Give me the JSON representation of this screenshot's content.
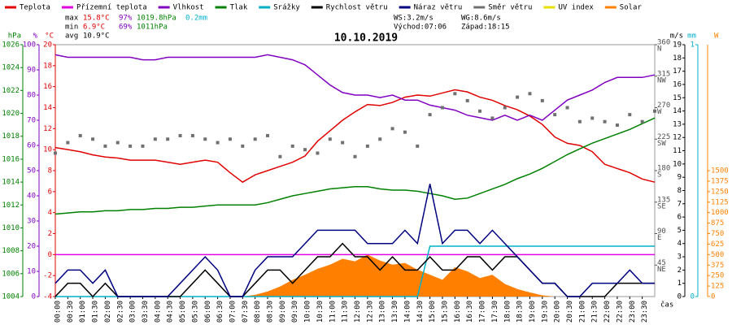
{
  "chart_data": {
    "type": "line",
    "title": "10.10.2019",
    "xlabel": "čas",
    "xlim": [
      0,
      24
    ],
    "xticks": [
      {
        "value": 0,
        "label": "00:00"
      },
      {
        "value": 0.5,
        "label": "00:30"
      },
      {
        "value": 1,
        "label": "01:00"
      },
      {
        "value": 1.5,
        "label": "01:30"
      },
      {
        "value": 2,
        "label": "02:00"
      },
      {
        "value": 2.5,
        "label": "02:30"
      },
      {
        "value": 3,
        "label": "03:00"
      },
      {
        "value": 3.5,
        "label": "03:30"
      },
      {
        "value": 4,
        "label": "04:00"
      },
      {
        "value": 4.5,
        "label": "04:30"
      },
      {
        "value": 5,
        "label": "05:00"
      },
      {
        "value": 5.5,
        "label": "05:30"
      },
      {
        "value": 6,
        "label": "06:00"
      },
      {
        "value": 6.5,
        "label": "06:30"
      },
      {
        "value": 7,
        "label": "07:00"
      },
      {
        "value": 7.5,
        "label": "07:30"
      },
      {
        "value": 8,
        "label": "08:00"
      },
      {
        "value": 8.5,
        "label": "08:30"
      },
      {
        "value": 9,
        "label": "09:00"
      },
      {
        "value": 9.5,
        "label": "09:30"
      },
      {
        "value": 10,
        "label": "10:00"
      },
      {
        "value": 10.5,
        "label": "10:30"
      },
      {
        "value": 11,
        "label": "11:00"
      },
      {
        "value": 11.5,
        "label": "11:30"
      },
      {
        "value": 12,
        "label": "12:00"
      },
      {
        "value": 12.5,
        "label": "12:30"
      },
      {
        "value": 13,
        "label": "13:00"
      },
      {
        "value": 13.5,
        "label": "13:30"
      },
      {
        "value": 14,
        "label": "14:00"
      },
      {
        "value": 14.5,
        "label": "14:30"
      },
      {
        "value": 15,
        "label": "15:00"
      },
      {
        "value": 15.5,
        "label": "15:30"
      },
      {
        "value": 16,
        "label": "16:00"
      },
      {
        "value": 16.5,
        "label": "16:30"
      },
      {
        "value": 17,
        "label": "17:00"
      },
      {
        "value": 17.5,
        "label": "17:30"
      },
      {
        "value": 18,
        "label": "18:00"
      },
      {
        "value": 18.5,
        "label": "18:30"
      },
      {
        "value": 19,
        "label": "19:00"
      },
      {
        "value": 19.5,
        "label": "19:30"
      },
      {
        "value": 20,
        "label": "20:00"
      },
      {
        "value": 20.5,
        "label": "20:30"
      },
      {
        "value": 21,
        "label": "21:00"
      },
      {
        "value": 21.5,
        "label": "21:30"
      },
      {
        "value": 22,
        "label": "22:00"
      },
      {
        "value": 22.5,
        "label": "22:30"
      },
      {
        "value": 23,
        "label": "23:00"
      },
      {
        "value": 23.5,
        "label": "23:30"
      }
    ],
    "x": [
      0,
      0.5,
      1,
      1.5,
      2,
      2.5,
      3,
      3.5,
      4,
      4.5,
      5,
      5.5,
      6,
      6.5,
      7,
      7.5,
      8,
      8.5,
      9,
      9.5,
      10,
      10.5,
      11,
      11.5,
      12,
      12.5,
      13,
      13.5,
      14,
      14.5,
      15,
      15.5,
      16,
      16.5,
      17,
      17.5,
      18,
      18.5,
      19,
      19.5,
      20,
      20.5,
      21,
      21.5,
      22,
      22.5,
      23,
      23.5,
      24
    ],
    "axes": {
      "hpa": {
        "label": "hPa",
        "color": "#008000",
        "lim": [
          1004,
          1026
        ],
        "ticks": [
          1004,
          1006,
          1008,
          1010,
          1012,
          1014,
          1016,
          1018,
          1020,
          1022,
          1024,
          1026
        ]
      },
      "pct": {
        "label": "%",
        "color": "#8000c0",
        "lim": [
          0,
          100
        ],
        "ticks": [
          0,
          10,
          20,
          30,
          40,
          50,
          60,
          70,
          80,
          90,
          100
        ]
      },
      "c": {
        "label": "°C",
        "color": "#e00000",
        "lim": [
          -4,
          20
        ],
        "ticks": [
          -4,
          -2,
          0,
          2,
          4,
          6,
          8,
          10,
          12,
          14,
          16,
          18,
          20
        ]
      },
      "dir": {
        "color": "#505050",
        "lim": [
          0,
          360
        ],
        "ticks": [
          {
            "value": 45,
            "label": "NE"
          },
          {
            "value": 90,
            "label": "E"
          },
          {
            "value": 135,
            "label": "SE"
          },
          {
            "value": 180,
            "label": "S"
          },
          {
            "value": 225,
            "label": "SW"
          },
          {
            "value": 270,
            "label": "W"
          },
          {
            "value": 315,
            "label": "NW"
          },
          {
            "value": 360,
            "label": "N"
          }
        ]
      },
      "ms": {
        "label": "m/s",
        "color": "#000000",
        "lim": [
          0,
          19
        ],
        "ticks": [
          0,
          1,
          2,
          3,
          4,
          5,
          6,
          7,
          8,
          9,
          10,
          11,
          12,
          13,
          14,
          15,
          16,
          17,
          18,
          19
        ]
      },
      "mm": {
        "label": "mm",
        "color": "#00b0c8",
        "lim": [
          0,
          1
        ],
        "ticks": [
          0,
          1
        ]
      },
      "w": {
        "label": "W",
        "color": "#ff8000",
        "lim": [
          0,
          3000
        ],
        "ticks": [
          0,
          125,
          250,
          375,
          500,
          625,
          750,
          875,
          1000,
          1125,
          1250,
          1375,
          1500
        ]
      }
    },
    "series": [
      {
        "name": "Solar",
        "color": "#ff8000",
        "axis": "w",
        "type": "area",
        "values": [
          0,
          0,
          0,
          0,
          0,
          0,
          0,
          0,
          0,
          0,
          0,
          0,
          0,
          0,
          0,
          0,
          20,
          60,
          120,
          200,
          260,
          330,
          380,
          450,
          420,
          500,
          430,
          380,
          400,
          320,
          260,
          200,
          350,
          300,
          220,
          260,
          150,
          90,
          50,
          15,
          0,
          0,
          0,
          0,
          0,
          0,
          0,
          0,
          0
        ]
      },
      {
        "name": "Teplota",
        "color": "#e00000",
        "axis": "c",
        "type": "line",
        "values": [
          10.2,
          10,
          9.8,
          9.5,
          9.3,
          9.2,
          9,
          9,
          9,
          8.8,
          8.6,
          8.8,
          9,
          8.8,
          7.8,
          6.9,
          7.6,
          8,
          8.4,
          8.8,
          9.4,
          10.8,
          11.8,
          12.8,
          13.6,
          14.3,
          14.2,
          14.5,
          15,
          15.2,
          15.1,
          15.4,
          15.7,
          15.5,
          15,
          14.7,
          14.2,
          13.8,
          13.2,
          12.4,
          11.2,
          10.6,
          10.4,
          9.8,
          8.6,
          8.2,
          7.8,
          7.2,
          6.9
        ]
      },
      {
        "name": "Přízemní teplota",
        "color": "#e000e0",
        "axis": "c",
        "type": "line",
        "values": [
          0,
          0,
          0,
          0,
          0,
          0,
          0,
          0,
          0,
          0,
          0,
          0,
          0,
          0,
          0,
          0,
          0,
          0,
          0,
          0,
          0,
          0,
          0,
          0,
          0,
          0,
          0,
          0,
          0,
          0,
          0,
          0,
          0,
          0,
          0,
          0,
          0,
          0,
          0,
          0,
          0,
          0,
          0,
          0,
          0,
          0,
          0,
          0,
          0
        ]
      },
      {
        "name": "Vlhkost",
        "color": "#8000c0",
        "axis": "pct",
        "type": "line",
        "values": [
          96,
          95,
          95,
          95,
          95,
          95,
          95,
          94,
          94,
          95,
          95,
          95,
          95,
          95,
          95,
          95,
          95,
          96,
          95,
          94,
          92,
          88,
          84,
          81,
          80,
          80,
          79,
          80,
          78,
          78,
          76,
          75,
          74,
          72,
          71,
          70,
          72,
          70,
          72,
          70,
          74,
          78,
          80,
          82,
          85,
          87,
          87,
          87,
          88
        ]
      },
      {
        "name": "Tlak",
        "color": "#008000",
        "axis": "hpa",
        "type": "line",
        "values": [
          1011.2,
          1011.3,
          1011.4,
          1011.4,
          1011.5,
          1011.5,
          1011.6,
          1011.6,
          1011.7,
          1011.7,
          1011.8,
          1011.8,
          1011.9,
          1012,
          1012,
          1012,
          1012,
          1012.2,
          1012.5,
          1012.8,
          1013,
          1013.2,
          1013.4,
          1013.5,
          1013.6,
          1013.6,
          1013.4,
          1013.3,
          1013.3,
          1013.2,
          1013,
          1012.8,
          1012.5,
          1012.6,
          1013,
          1013.4,
          1013.8,
          1014.3,
          1014.7,
          1015.2,
          1015.8,
          1016.4,
          1016.9,
          1017.4,
          1017.8,
          1018.2,
          1018.6,
          1019.1,
          1019.6
        ]
      },
      {
        "name": "Srážky",
        "color": "#00b0c8",
        "axis": "mm",
        "type": "line",
        "values": [
          0,
          0,
          0,
          0,
          0,
          0,
          0,
          0,
          0,
          0,
          0,
          0,
          0,
          0,
          0,
          0,
          0,
          0,
          0,
          0,
          0,
          0,
          0,
          0,
          0,
          0,
          0,
          0,
          0,
          0,
          0.2,
          0.2,
          0.2,
          0.2,
          0.2,
          0.2,
          0.2,
          0.2,
          0.2,
          0.2,
          0.2,
          0.2,
          0.2,
          0.2,
          0.2,
          0.2,
          0.2,
          0.2,
          0.2
        ]
      },
      {
        "name": "Rychlost větru",
        "color": "#000000",
        "axis": "ms",
        "type": "line",
        "values": [
          0,
          1,
          1,
          0,
          1,
          0,
          0,
          0,
          0,
          0,
          0,
          1,
          2,
          1,
          0,
          0,
          1,
          2,
          2,
          1,
          2,
          3,
          3,
          4,
          3,
          3,
          2,
          3,
          2,
          2,
          3,
          2,
          2,
          3,
          3,
          2,
          3,
          3,
          2,
          1,
          1,
          0,
          0,
          0,
          0,
          1,
          1,
          1,
          1
        ]
      },
      {
        "name": "Náraz větru",
        "color": "#000080",
        "axis": "ms",
        "type": "line",
        "values": [
          1,
          2,
          2,
          1,
          2,
          0,
          0,
          0,
          0,
          0,
          1,
          2,
          3,
          2,
          0,
          0,
          2,
          3,
          3,
          3,
          4,
          5,
          5,
          5,
          5,
          4,
          4,
          4,
          5,
          4,
          8.5,
          4,
          5,
          5,
          4,
          5,
          4,
          3,
          2,
          1,
          1,
          0,
          0,
          1,
          1,
          1,
          2,
          1,
          1
        ]
      },
      {
        "name": "Směr větru",
        "color": "#707070",
        "axis": "dir",
        "type": "scatter",
        "values": [
          205,
          220,
          230,
          225,
          215,
          220,
          215,
          215,
          225,
          225,
          230,
          230,
          225,
          220,
          225,
          215,
          225,
          230,
          200,
          215,
          210,
          205,
          225,
          220,
          200,
          215,
          225,
          240,
          235,
          215,
          260,
          270,
          290,
          280,
          265,
          255,
          270,
          285,
          290,
          280,
          260,
          270,
          250,
          255,
          250,
          245,
          260,
          250,
          265
        ]
      },
      {
        "name": "UV index",
        "color": "#e8e000",
        "axis": "w",
        "type": "none"
      }
    ],
    "info": {
      "max": {
        "label": "max",
        "t": "15.8°C",
        "h": "97%",
        "p": "1019.8hPa",
        "r": "0.2mm"
      },
      "min": {
        "label": "min",
        "t": "6.9°C",
        "h": "69%",
        "p": "1011hPa"
      },
      "avg": {
        "label": "avg",
        "t": "10.9°C"
      },
      "ws": "WS:3.2m/s",
      "wg": "WG:8.6m/s",
      "sunrise": "Východ:07:06",
      "sunset": "Západ:18:15"
    }
  }
}
